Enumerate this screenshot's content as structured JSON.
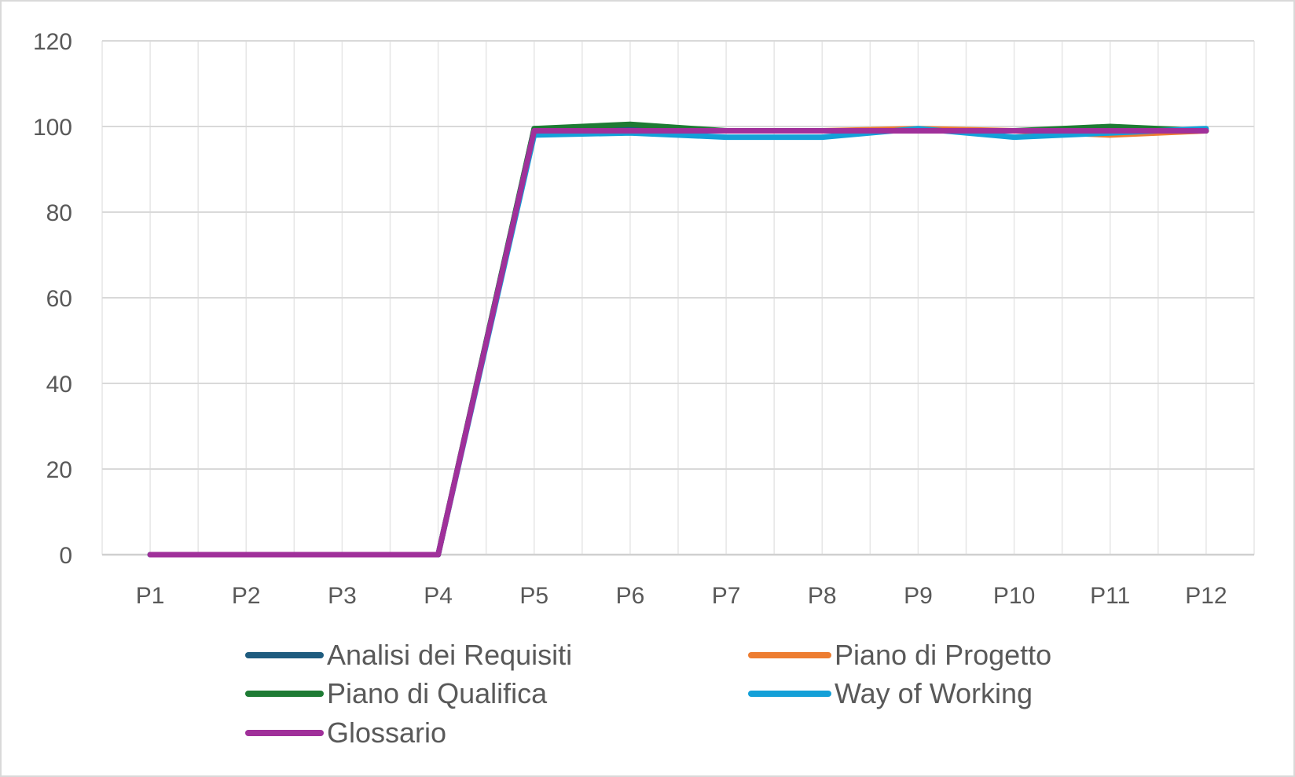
{
  "chart_data": {
    "type": "line",
    "title": "",
    "xlabel": "",
    "ylabel": "",
    "categories": [
      "P1",
      "P2",
      "P3",
      "P4",
      "P5",
      "P6",
      "P7",
      "P8",
      "P9",
      "P10",
      "P11",
      "P12"
    ],
    "ylim": [
      0,
      120
    ],
    "yticks": [
      "0",
      "20",
      "40",
      "60",
      "80",
      "100",
      "120"
    ],
    "grid": true,
    "legend_position": "bottom",
    "series": [
      {
        "name": "Analisi dei Requisiti",
        "color": "#1f5c7f",
        "values": [
          0,
          0,
          0,
          0,
          99.5,
          99.5,
          99,
          99,
          99,
          99,
          99,
          99
        ]
      },
      {
        "name": "Piano di Progetto",
        "color": "#ed7d31",
        "values": [
          0,
          0,
          0,
          0,
          99,
          99,
          99,
          99,
          99.5,
          99,
          98,
          99
        ]
      },
      {
        "name": "Piano di Qualifica",
        "color": "#1e7b34",
        "values": [
          0,
          0,
          0,
          0,
          99.5,
          100.5,
          99,
          99,
          99,
          99,
          100,
          99
        ]
      },
      {
        "name": "Way of Working",
        "color": "#14a0d8",
        "values": [
          0,
          0,
          0,
          0,
          98,
          98.5,
          97.5,
          97.5,
          99.5,
          97.5,
          98.5,
          99.5
        ]
      },
      {
        "name": "Glossario",
        "color": "#a0309a",
        "values": [
          0,
          0,
          0,
          0,
          99,
          99,
          99,
          99,
          99,
          99,
          99,
          99
        ]
      }
    ]
  }
}
